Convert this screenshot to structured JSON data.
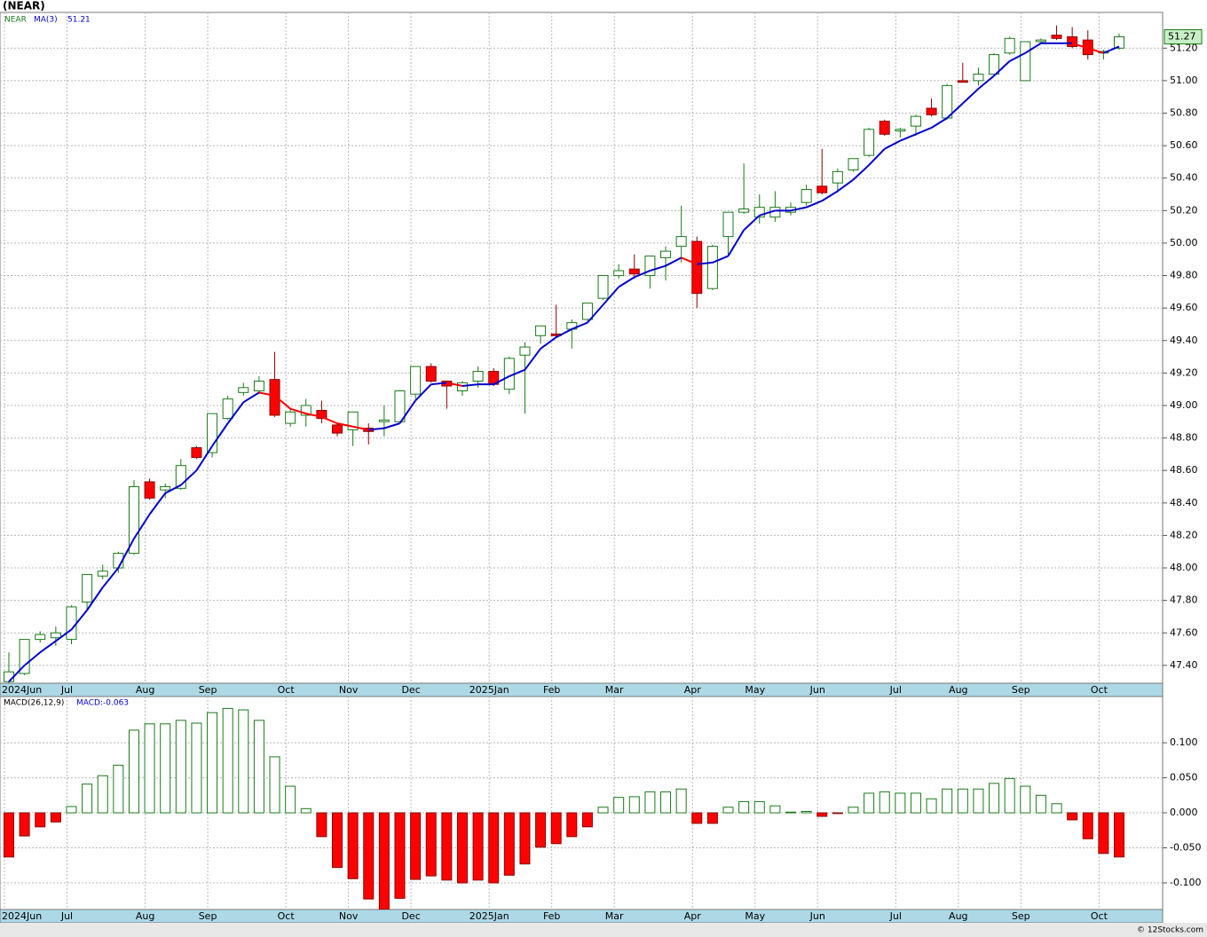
{
  "chart_data": [
    {
      "type": "candlestick",
      "title": "(NEAR)",
      "name": "NEAR",
      "categories": [
        "2024Jun",
        null,
        null,
        null,
        "Jul",
        null,
        null,
        null,
        null,
        "Aug",
        null,
        null,
        null,
        "Sep",
        null,
        null,
        null,
        null,
        "Oct",
        null,
        null,
        null,
        "Nov",
        null,
        null,
        null,
        "Dec",
        null,
        null,
        null,
        null,
        "2025Jan",
        null,
        null,
        null,
        "Feb",
        null,
        null,
        null,
        "Mar",
        null,
        null,
        null,
        null,
        "Apr",
        null,
        null,
        null,
        "May",
        null,
        null,
        null,
        "Jun",
        null,
        null,
        null,
        null,
        "Jul",
        null,
        null,
        null,
        "Aug",
        null,
        null,
        null,
        "Sep",
        null,
        null,
        null,
        null,
        "Oct",
        null
      ],
      "open": [
        47.3,
        47.35,
        47.56,
        47.57,
        47.56,
        47.79,
        47.95,
        48.0,
        48.09,
        48.53,
        48.48,
        48.49,
        48.74,
        48.71,
        48.92,
        49.08,
        49.09,
        49.16,
        48.89,
        48.94,
        48.97,
        48.88,
        48.85,
        48.86,
        48.9,
        48.9,
        49.07,
        49.24,
        49.15,
        49.09,
        49.15,
        49.21,
        49.1,
        49.31,
        49.43,
        49.44,
        49.47,
        49.53,
        49.66,
        49.8,
        49.84,
        49.8,
        49.91,
        49.98,
        50.01,
        49.72,
        50.04,
        50.19,
        50.16,
        50.16,
        50.19,
        50.25,
        50.35,
        50.37,
        50.45,
        50.54,
        50.75,
        50.69,
        50.72,
        50.83,
        50.77,
        51.0,
        51.0,
        51.04,
        51.17,
        51.0,
        51.24,
        51.28,
        51.27,
        51.25,
        51.17,
        51.2
      ],
      "high": [
        47.48,
        47.56,
        47.61,
        47.64,
        47.77,
        47.96,
        48.02,
        48.1,
        48.54,
        48.55,
        48.52,
        48.67,
        48.75,
        48.95,
        49.06,
        49.14,
        49.18,
        49.33,
        48.98,
        49.04,
        49.03,
        48.89,
        48.96,
        48.89,
        49.0,
        49.09,
        49.24,
        49.26,
        49.15,
        49.15,
        49.24,
        49.23,
        49.3,
        49.39,
        49.49,
        49.62,
        49.53,
        49.63,
        49.8,
        49.87,
        49.93,
        49.92,
        49.98,
        50.23,
        50.04,
        49.99,
        50.19,
        50.49,
        50.3,
        50.32,
        50.25,
        50.36,
        50.58,
        50.46,
        50.52,
        50.71,
        50.76,
        50.71,
        50.79,
        50.89,
        50.98,
        51.11,
        51.08,
        51.17,
        51.27,
        51.24,
        51.26,
        51.34,
        51.33,
        51.31,
        51.19,
        51.29
      ],
      "low": [
        47.29,
        47.34,
        47.54,
        47.52,
        47.53,
        47.74,
        47.93,
        47.97,
        48.08,
        48.42,
        48.43,
        48.48,
        48.67,
        48.68,
        48.91,
        49.06,
        49.07,
        48.93,
        48.87,
        48.87,
        48.89,
        48.81,
        48.75,
        48.76,
        48.81,
        48.89,
        49.04,
        49.14,
        48.98,
        49.06,
        49.11,
        49.12,
        49.07,
        48.95,
        49.38,
        49.42,
        49.35,
        49.52,
        49.65,
        49.78,
        49.78,
        49.72,
        49.77,
        49.88,
        49.6,
        49.71,
        49.92,
        50.18,
        50.12,
        50.13,
        50.17,
        50.23,
        50.3,
        50.31,
        50.44,
        50.53,
        50.66,
        50.65,
        50.66,
        50.78,
        50.76,
        50.99,
        50.97,
        51.03,
        51.16,
        51.0,
        51.23,
        51.25,
        51.2,
        51.13,
        51.13,
        51.19
      ],
      "close": [
        47.36,
        47.56,
        47.59,
        47.6,
        47.76,
        47.96,
        47.98,
        48.09,
        48.5,
        48.43,
        48.5,
        48.63,
        48.68,
        48.95,
        49.04,
        49.11,
        49.15,
        48.94,
        48.96,
        49.0,
        48.92,
        48.83,
        48.96,
        48.84,
        48.91,
        49.09,
        49.24,
        49.15,
        49.12,
        49.14,
        49.21,
        49.13,
        49.29,
        49.36,
        49.49,
        49.43,
        49.51,
        49.63,
        49.8,
        49.83,
        49.81,
        49.92,
        49.95,
        50.04,
        49.69,
        49.98,
        50.19,
        50.21,
        50.22,
        50.22,
        50.22,
        50.33,
        50.31,
        50.44,
        50.52,
        50.7,
        50.67,
        50.7,
        50.78,
        50.79,
        50.97,
        50.99,
        51.04,
        51.16,
        51.26,
        51.24,
        51.25,
        51.26,
        51.21,
        51.16,
        51.18,
        51.27
      ],
      "up_color": "#ffffff",
      "up_border": "#1a7a1a",
      "down_color": "#ff0000",
      "down_border": "#8b0000",
      "overlays": [
        {
          "name": "MA(3)",
          "up_color": "#0000cc",
          "down_color": "#ff0000",
          "values": [
            47.3,
            47.4,
            47.48,
            47.55,
            47.62,
            47.74,
            47.88,
            48.0,
            48.18,
            48.33,
            48.46,
            48.51,
            48.6,
            48.75,
            48.89,
            49.02,
            49.08,
            49.06,
            48.98,
            48.95,
            48.93,
            48.89,
            48.87,
            48.85,
            48.86,
            48.89,
            49.03,
            49.13,
            49.14,
            49.12,
            49.13,
            49.13,
            49.18,
            49.22,
            49.35,
            49.42,
            49.47,
            49.51,
            49.62,
            49.73,
            49.79,
            49.83,
            49.86,
            49.91,
            49.87,
            49.88,
            49.92,
            50.08,
            50.17,
            50.2,
            50.2,
            50.22,
            50.26,
            50.32,
            50.39,
            50.48,
            50.58,
            50.63,
            50.67,
            50.71,
            50.77,
            50.86,
            50.95,
            51.03,
            51.12,
            51.17,
            51.23,
            51.23,
            51.23,
            51.2,
            51.17,
            51.21
          ]
        }
      ],
      "ma_last": 51.21,
      "last_price": 51.27,
      "ylim": [
        47.29,
        51.42
      ],
      "yticks": [
        {
          "value": 47.4,
          "label": "47.40"
        },
        {
          "value": 47.6,
          "label": "47.60"
        },
        {
          "value": 47.8,
          "label": "47.80"
        },
        {
          "value": 48,
          "label": "48.00"
        },
        {
          "value": 48.2,
          "label": "48.20"
        },
        {
          "value": 48.4,
          "label": "48.40"
        },
        {
          "value": 48.6,
          "label": "48.60"
        },
        {
          "value": 48.8,
          "label": "48.80"
        },
        {
          "value": 49,
          "label": "49.00"
        },
        {
          "value": 49.2,
          "label": "49.20"
        },
        {
          "value": 49.4,
          "label": "49.40"
        },
        {
          "value": 49.6,
          "label": "49.60"
        },
        {
          "value": 49.8,
          "label": "49.80"
        },
        {
          "value": 50,
          "label": "50.00"
        },
        {
          "value": 50.2,
          "label": "50.20"
        },
        {
          "value": 50.4,
          "label": "50.40"
        },
        {
          "value": 50.6,
          "label": "50.60"
        },
        {
          "value": 50.8,
          "label": "50.80"
        },
        {
          "value": 51,
          "label": "51.00"
        },
        {
          "value": 51.2,
          "label": "51.20"
        }
      ],
      "grid": true
    },
    {
      "type": "bar",
      "name": "MACD(26,12,9)",
      "value_text": "MACD:-0.063",
      "pos_color": "#ffffff",
      "pos_border": "#1a7a1a",
      "neg_color": "#ff0000",
      "neg_border": "#8b0000",
      "values": [
        -0.063,
        -0.033,
        -0.02,
        -0.013,
        0.009,
        0.041,
        0.053,
        0.068,
        0.118,
        0.127,
        0.127,
        0.132,
        0.128,
        0.143,
        0.149,
        0.147,
        0.132,
        0.08,
        0.038,
        0.006,
        -0.034,
        -0.078,
        -0.094,
        -0.123,
        -0.138,
        -0.122,
        -0.095,
        -0.09,
        -0.096,
        -0.1,
        -0.096,
        -0.1,
        -0.089,
        -0.073,
        -0.049,
        -0.044,
        -0.034,
        -0.02,
        0.008,
        0.022,
        0.023,
        0.03,
        0.03,
        0.034,
        -0.015,
        -0.015,
        0.008,
        0.016,
        0.016,
        0.01,
        0.001,
        0.002,
        -0.005,
        -0.001,
        0.008,
        0.028,
        0.03,
        0.028,
        0.028,
        0.02,
        0.034,
        0.034,
        0.034,
        0.042,
        0.049,
        0.038,
        0.025,
        0.013,
        -0.01,
        -0.037,
        -0.058,
        -0.063
      ],
      "ylim": [
        -0.138,
        0.166
      ],
      "yticks": [
        {
          "value": -0.1,
          "label": "-0.100"
        },
        {
          "value": -0.05,
          "label": "-0.050"
        },
        {
          "value": 0,
          "label": "0.000"
        },
        {
          "value": 0.05,
          "label": "0.050"
        },
        {
          "value": 0.1,
          "label": "0.100"
        }
      ],
      "grid": true
    }
  ],
  "footer": "© 12Stocks.com"
}
